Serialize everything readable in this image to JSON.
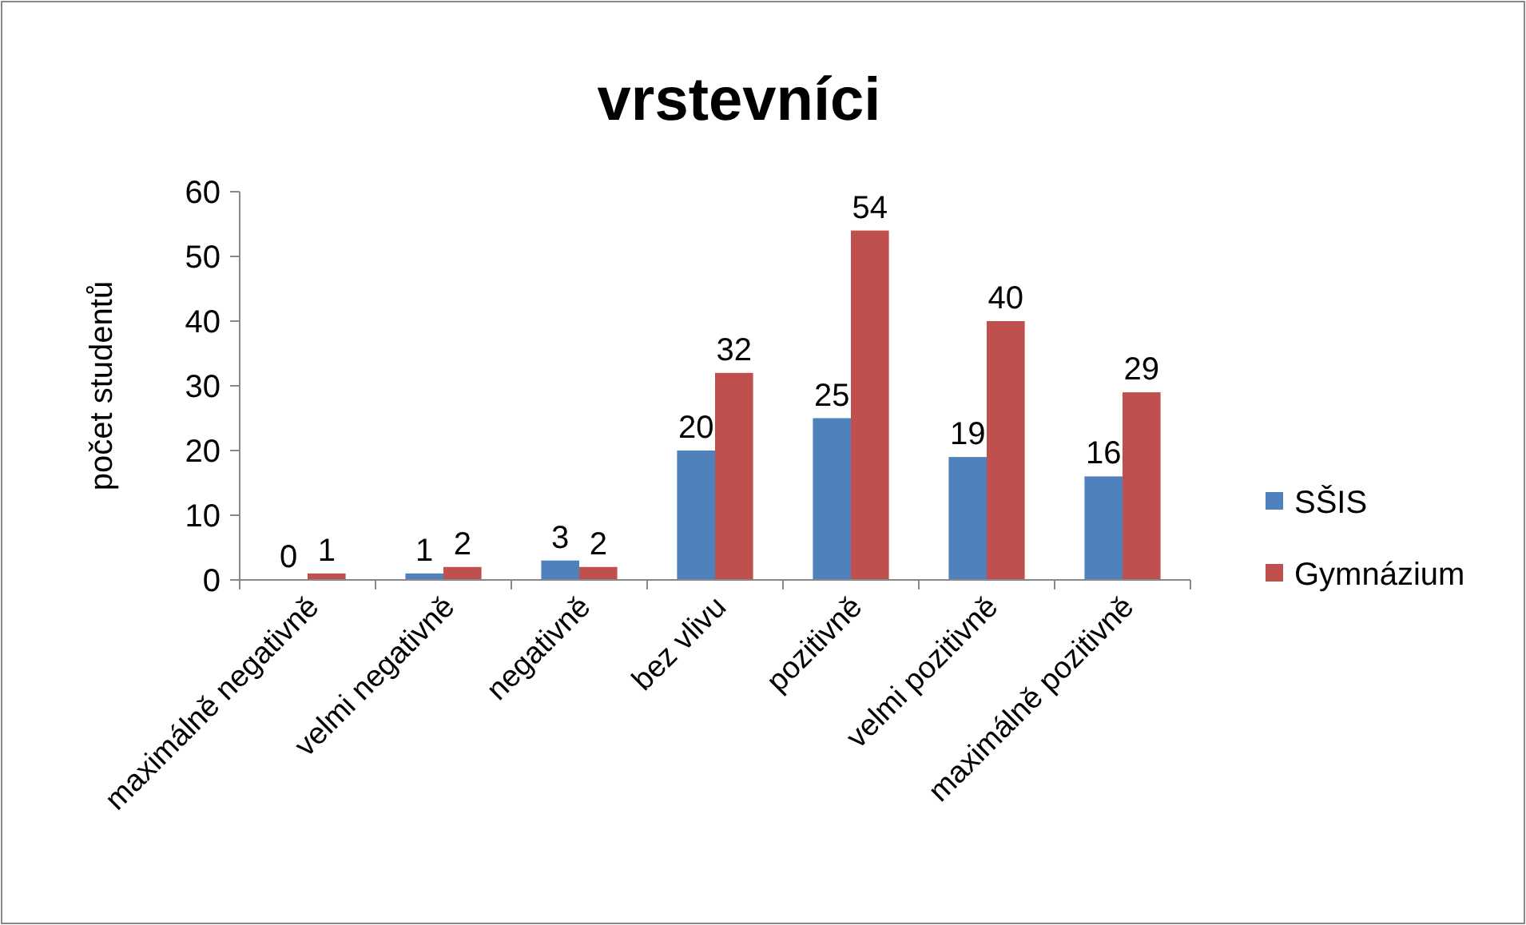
{
  "chart_data": {
    "type": "bar",
    "title": "vrstevníci",
    "ylabel": "počet studentů",
    "categories": [
      "maximálně negativně",
      "velmi negativně",
      "negativně",
      "bez vlivu",
      "pozitivně",
      "velmi pozitivně",
      "maximálně pozitivně"
    ],
    "series": [
      {
        "name": "SŠIS",
        "color": "#4f81bd",
        "values": [
          0,
          1,
          3,
          20,
          25,
          19,
          16
        ]
      },
      {
        "name": "Gymnázium",
        "color": "#c0504d",
        "values": [
          1,
          2,
          2,
          32,
          54,
          40,
          29
        ]
      }
    ],
    "ylim": [
      0,
      60
    ],
    "yticks": [
      0,
      10,
      20,
      30,
      40,
      50,
      60
    ],
    "grid": false,
    "legend": "right",
    "data_labels": true
  }
}
